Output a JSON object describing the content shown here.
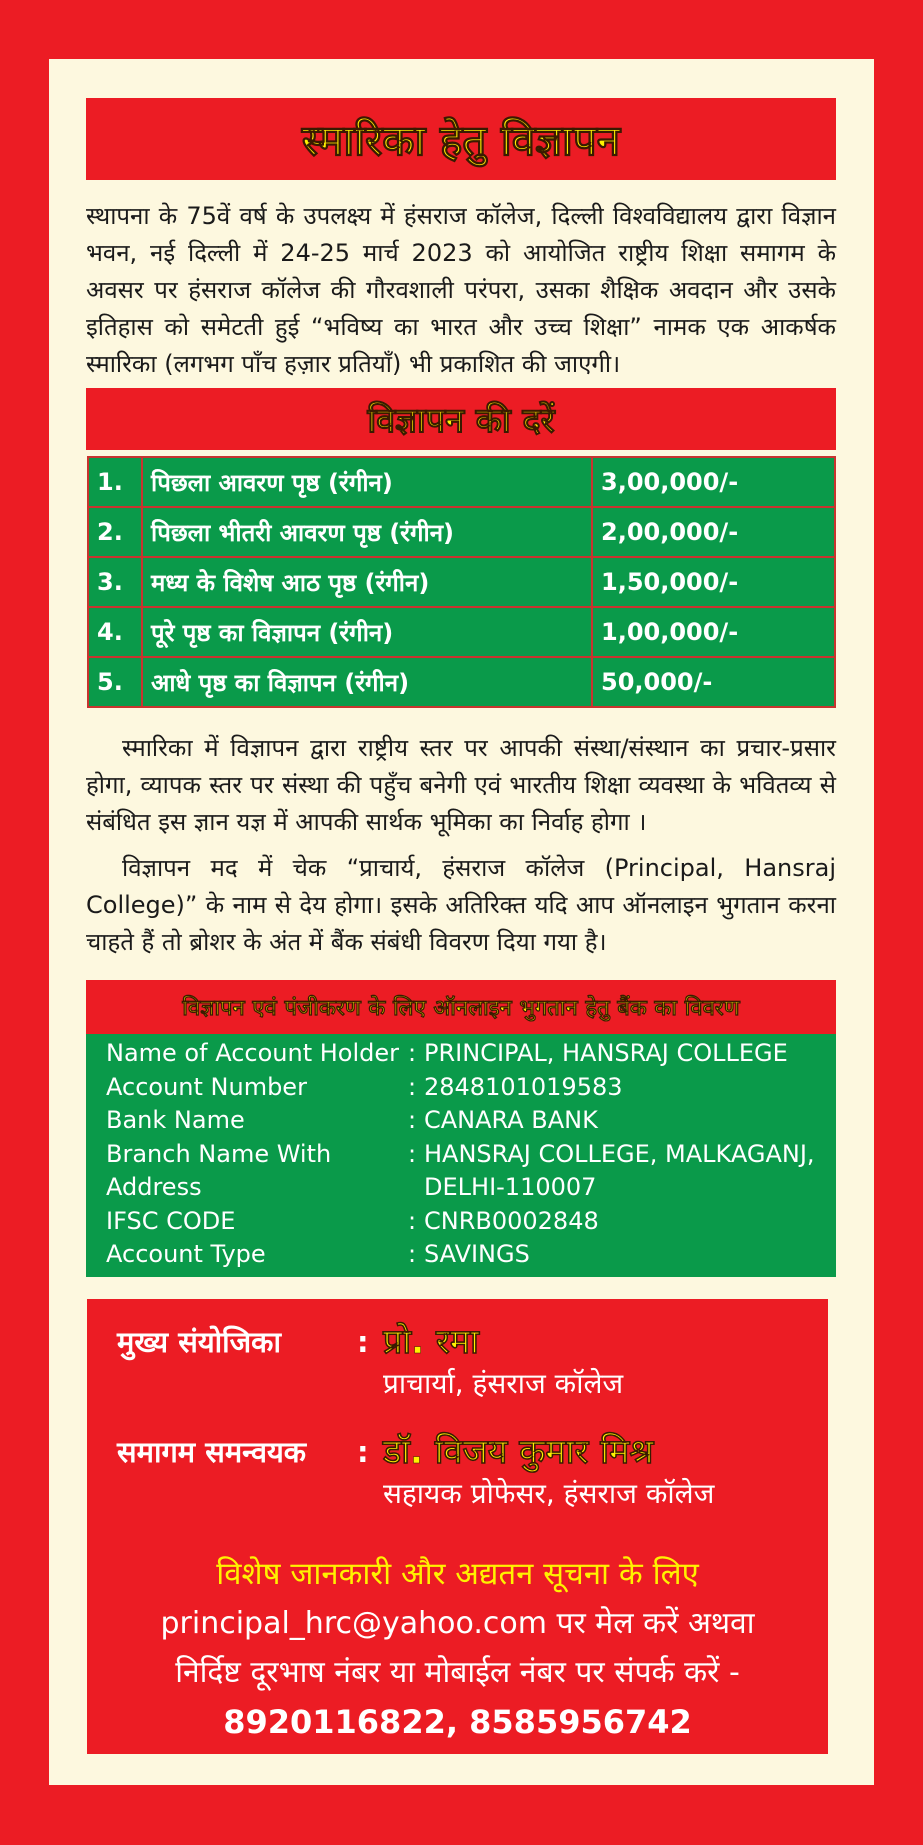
{
  "header": {
    "title": "स्मारिका हेतु विज्ञापन"
  },
  "intro": "स्थापना के 75वें वर्ष के उपलक्ष्य में हंसराज कॉलेज, दिल्ली विश्वविद्यालय द्वारा विज्ञान भवन, नई दिल्ली में 24-25 मार्च 2023 को आयोजित राष्ट्रीय शिक्षा समागम के अवसर पर हंसराज कॉलेज की गौरवशाली परंपरा, उसका शैक्षिक अवदान और उसके इतिहास को समेटती हुई  “भविष्य का भारत और उच्च शिक्षा” नामक एक आकर्षक स्मारिका (लगभग पाँच हज़ार प्रतियाँ) भी प्रकाशित की जाएगी।",
  "rates": {
    "title": "विज्ञापन की दरें",
    "rows": [
      [
        "1.",
        "पिछला आवरण पृष्ठ (रंगीन)",
        "3,00,000/-"
      ],
      [
        "2.",
        "पिछला भीतरी आवरण पृष्ठ (रंगीन)",
        "2,00,000/-"
      ],
      [
        "3.",
        "मध्य के विशेष आठ पृष्ठ (रंगीन)",
        "1,50,000/-"
      ],
      [
        "4.",
        "पूरे पृष्ठ का विज्ञापन (रंगीन)",
        "1,00,000/-"
      ],
      [
        "5.",
        "आधे पृष्ठ का विज्ञापन (रंगीन)",
        "50,000/-"
      ]
    ]
  },
  "paragraphs": [
    "स्मारिका में विज्ञापन द्वारा राष्ट्रीय स्तर पर आपकी संस्था/संस्थान का प्रचार-प्रसार होगा, व्यापक स्तर पर संस्था की पहुँच बनेगी एवं भारतीय शिक्षा व्यवस्था के भवितव्य से संबंधित इस ज्ञान यज्ञ में आपकी सार्थक भूमिका का निर्वाह होगा ।",
    "विज्ञापन मद में चेक “प्राचार्य, हंसराज कॉलेज (Principal, Hansraj College)” के नाम से देय होगा। इसके अतिरिक्त यदि आप ऑनलाइन भुगतान करना चाहते हैं तो ब्रोशर के अंत में बैंक संबंधी विवरण दिया गया है।"
  ],
  "bank": {
    "title": "विज्ञापन एवं पंजीकरण के लिए ऑनलाइन भुगतान हेतु बैंक का विवरण",
    "separator": ":",
    "rows": [
      {
        "label": "Name of Account Holder",
        "value": [
          "PRINCIPAL, HANSRAJ COLLEGE"
        ]
      },
      {
        "label": "Account Number",
        "value": [
          "2848101019583"
        ]
      },
      {
        "label": "Bank Name",
        "value": [
          "CANARA BANK"
        ]
      },
      {
        "label": "Branch Name With Address",
        "value": [
          "HANSRAJ COLLEGE, MALKAGANJ,",
          "DELHI-110007"
        ]
      },
      {
        "label": "IFSC CODE",
        "value": [
          "CNRB0002848"
        ]
      },
      {
        "label": "Account Type",
        "value": [
          "SAVINGS"
        ]
      }
    ]
  },
  "contacts": {
    "separator": ":",
    "people": [
      {
        "role": "मुख्य संयोजिका",
        "name": "प्रो. रमा",
        "designation": "प्राचार्या, हंसराज कॉलेज"
      },
      {
        "role": "समागम समन्वयक",
        "name": "डॉ. विजय कुमार मिश्र",
        "designation": "सहायक प्रोफेसर, हंसराज कॉलेज"
      }
    ]
  },
  "footer": {
    "heading": "विशेष जानकारी और अद्यतन सूचना के लिए",
    "lines": [
      "principal_hrc@yahoo.com पर मेल करें अथवा",
      "निर्दिष्ट दूरभाष नंबर या मोबाईल नंबर पर संपर्क करें -"
    ],
    "phones": "8920116822, 8585956742"
  }
}
